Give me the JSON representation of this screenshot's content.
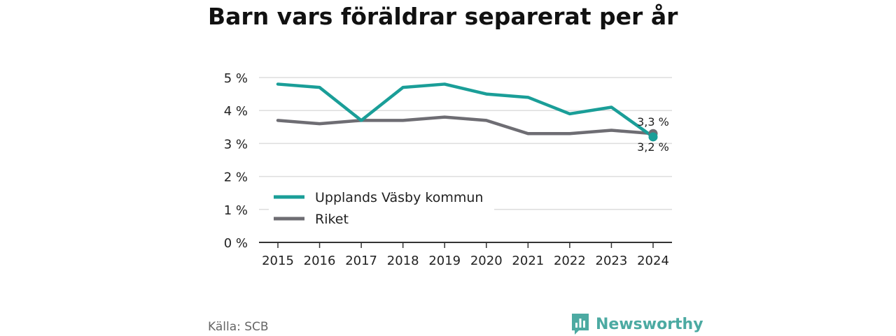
{
  "title": "Barn vars föräldrar separerat per år",
  "source": "Källa: SCB",
  "brand": {
    "name": "Newsworthy",
    "icon": "bar-chart-speech-bubble-icon"
  },
  "colors": {
    "upplands": "#1a9e98",
    "riket": "#6e6d73",
    "grid": "#dddddd",
    "axis": "#333333",
    "brand": "#4caaa2"
  },
  "chart_data": {
    "type": "line",
    "title": "Barn vars föräldrar separerat per år",
    "x": [
      "2015",
      "2016",
      "2017",
      "2018",
      "2019",
      "2020",
      "2021",
      "2022",
      "2023",
      "2024"
    ],
    "series": [
      {
        "name": "Upplands Väsby kommun",
        "values": [
          4.8,
          4.7,
          3.7,
          4.7,
          4.8,
          4.5,
          4.4,
          3.9,
          4.1,
          3.2
        ],
        "end_label": "3,2 %"
      },
      {
        "name": "Riket",
        "values": [
          3.7,
          3.6,
          3.7,
          3.7,
          3.8,
          3.7,
          3.3,
          3.3,
          3.4,
          3.3
        ],
        "end_label": "3,3 %"
      }
    ],
    "ylim": [
      0,
      5
    ],
    "y_ticks": [
      0,
      1,
      2,
      3,
      4,
      5
    ],
    "y_tick_labels": [
      "0 %",
      "1 %",
      "2 %",
      "3 %",
      "4 %",
      "5 %"
    ],
    "grid": true,
    "legend": "bottom-left"
  }
}
